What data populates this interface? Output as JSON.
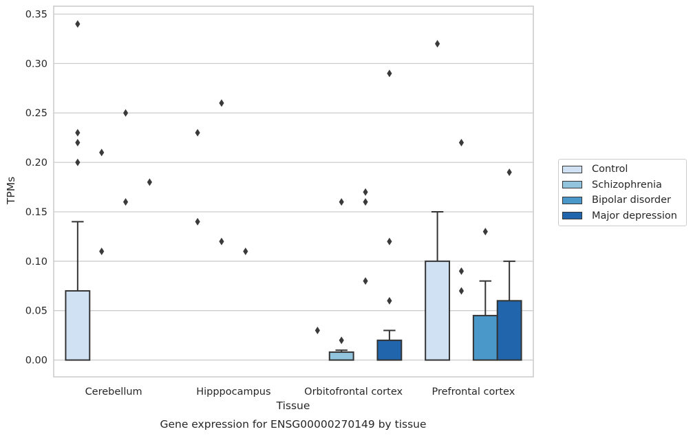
{
  "chart_data": {
    "type": "bar",
    "title": "Gene expression for ENSG00000270149 by tissue",
    "xlabel": "Tissue",
    "ylabel": "TPMs",
    "ylim": [
      -0.017,
      0.358
    ],
    "y_ticks": [
      "0.00",
      "0.05",
      "0.10",
      "0.15",
      "0.20",
      "0.25",
      "0.30",
      "0.35"
    ],
    "y_tick_values": [
      0,
      0.05,
      0.1,
      0.15,
      0.2,
      0.25,
      0.3,
      0.35
    ],
    "grid": "horizontal",
    "legend_position": "right",
    "categories": [
      "Cerebellum",
      "Hipppocampus",
      "Orbitofrontal cortex",
      "Prefrontal cortex"
    ],
    "series": [
      {
        "name": "Control",
        "color": "#cfe1f2",
        "values": [
          0.07,
          0,
          0,
          0.1
        ],
        "whisker_high": [
          0.14,
          0,
          0,
          0.15
        ],
        "outliers": [
          [
            0.34,
            0.23,
            0.22,
            0.2
          ],
          [
            0.23,
            0.14
          ],
          [
            0.03
          ],
          [
            0.32
          ]
        ]
      },
      {
        "name": "Schizophrenia",
        "color": "#93c4de",
        "values": [
          0,
          0,
          0.008,
          0
        ],
        "whisker_high": [
          0,
          0,
          0.01,
          0
        ],
        "outliers": [
          [
            0.21,
            0.11
          ],
          [
            0.26,
            0.12
          ],
          [
            0.16,
            0.02
          ],
          [
            0.22,
            0.09,
            0.07
          ]
        ]
      },
      {
        "name": "Bipolar disorder",
        "color": "#4a98c9",
        "values": [
          0,
          0,
          0,
          0.045
        ],
        "whisker_high": [
          0,
          0,
          0,
          0.08
        ],
        "outliers": [
          [
            0.25,
            0.16
          ],
          [
            0.11
          ],
          [
            0.17,
            0.16,
            0.08
          ],
          [
            0.13
          ]
        ]
      },
      {
        "name": "Major depression",
        "color": "#2166ac",
        "values": [
          0,
          0,
          0.02,
          0.06
        ],
        "whisker_high": [
          0,
          0,
          0.03,
          0.1
        ],
        "outliers": [
          [
            0.18
          ],
          [],
          [
            0.29,
            0.12,
            0.06
          ],
          [
            0.19
          ]
        ]
      }
    ]
  }
}
